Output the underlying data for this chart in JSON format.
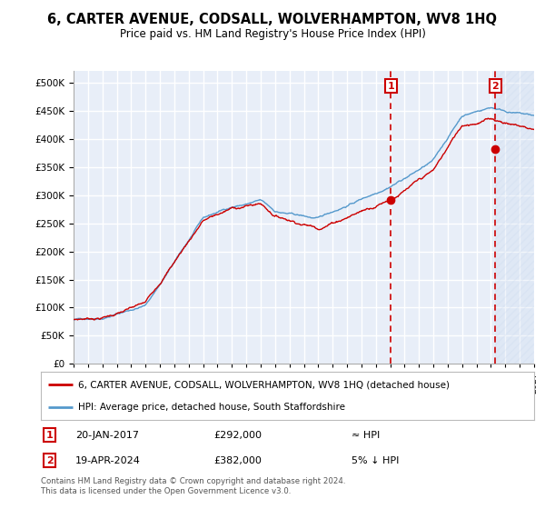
{
  "title": "6, CARTER AVENUE, CODSALL, WOLVERHAMPTON, WV8 1HQ",
  "subtitle": "Price paid vs. HM Land Registry's House Price Index (HPI)",
  "legend_line1": "6, CARTER AVENUE, CODSALL, WOLVERHAMPTON, WV8 1HQ (detached house)",
  "legend_line2": "HPI: Average price, detached house, South Staffordshire",
  "annotation1_date": "20-JAN-2017",
  "annotation1_price": "£292,000",
  "annotation1_hpi": "≈ HPI",
  "annotation2_date": "19-APR-2024",
  "annotation2_price": "£382,000",
  "annotation2_hpi": "5% ↓ HPI",
  "footer": "Contains HM Land Registry data © Crown copyright and database right 2024.\nThis data is licensed under the Open Government Licence v3.0.",
  "sale1_year": 2017.05,
  "sale1_value": 292000,
  "sale2_year": 2024.3,
  "sale2_value": 382000,
  "vline1_year": 2017.05,
  "vline2_year": 2024.3,
  "property_color": "#cc0000",
  "hpi_color": "#5599cc",
  "vline_color": "#cc0000",
  "background_color": "#e8eef8",
  "grid_color": "#ffffff",
  "ylim_min": 0,
  "ylim_max": 520000,
  "ytick_step": 50000,
  "xmin": 1995,
  "xmax": 2027
}
